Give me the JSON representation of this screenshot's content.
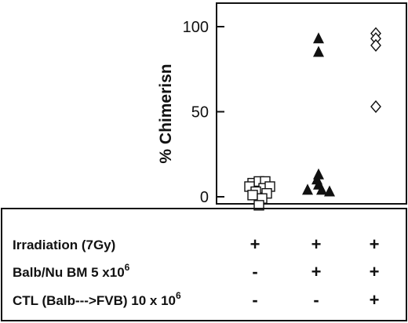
{
  "chart_data": {
    "type": "scatter",
    "ylabel": "% Chimerisn",
    "ylim": [
      0,
      110
    ],
    "yticks": [
      0,
      50,
      100
    ],
    "grid": false,
    "legend": "none",
    "groups": [
      {
        "marker": "square-open",
        "values": [
          {
            "dx": -8,
            "y": 8
          },
          {
            "dx": 0,
            "y": 9
          },
          {
            "dx": 8,
            "y": 9
          },
          {
            "dx": -12,
            "y": 6
          },
          {
            "dx": 6,
            "y": 5
          },
          {
            "dx": 14,
            "y": 6
          },
          {
            "dx": -4,
            "y": 3
          },
          {
            "dx": 10,
            "y": 2
          },
          {
            "dx": -8,
            "y": 1
          },
          {
            "dx": 4,
            "y": -1
          },
          {
            "dx": 0,
            "y": -5
          }
        ]
      },
      {
        "marker": "triangle-filled",
        "values": [
          {
            "dx": 0,
            "y": 93
          },
          {
            "dx": 0,
            "y": 85
          },
          {
            "dx": 0,
            "y": 13
          },
          {
            "dx": -2,
            "y": 10
          },
          {
            "dx": 0,
            "y": 7
          },
          {
            "dx": -14,
            "y": 4
          },
          {
            "dx": 4,
            "y": 4
          },
          {
            "dx": 14,
            "y": 3
          }
        ]
      },
      {
        "marker": "diamond-open",
        "values": [
          {
            "dx": 0,
            "y": 96
          },
          {
            "dx": 0,
            "y": 93
          },
          {
            "dx": 0,
            "y": 89
          },
          {
            "dx": 0,
            "y": 53
          }
        ]
      }
    ]
  },
  "conditions": [
    {
      "label": "Irradiation  (7Gy)",
      "marks": [
        "+",
        "+",
        "+"
      ]
    },
    {
      "label": "Balb/Nu BM 5 x10",
      "sup": "6",
      "marks": [
        "-",
        "+",
        "+"
      ]
    },
    {
      "label": "CTL (Balb--->FVB) 10 x 10",
      "sup": "6",
      "marks": [
        "-",
        "-",
        "+"
      ]
    }
  ]
}
